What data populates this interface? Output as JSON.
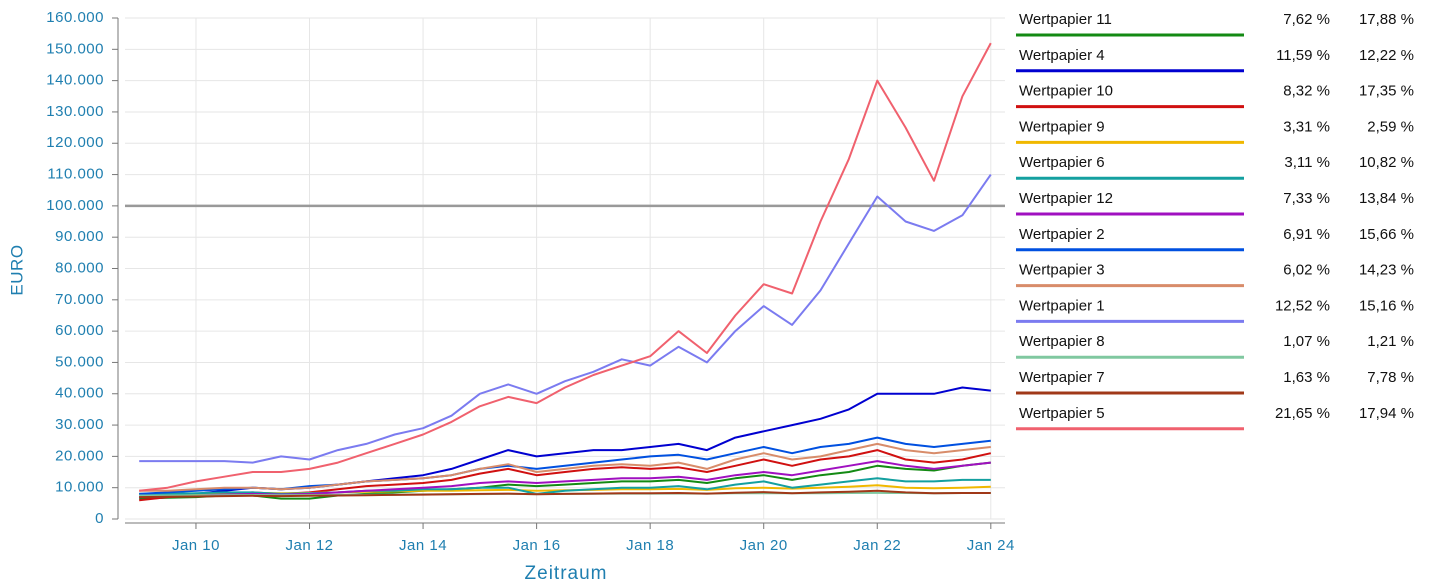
{
  "chart_data": {
    "type": "line",
    "ylabel": "EURO",
    "xlabel": "Zeitraum",
    "x": [
      "2009-01",
      "2009-07",
      "2010-01",
      "2010-07",
      "2011-01",
      "2011-07",
      "2012-01",
      "2012-07",
      "2013-01",
      "2013-07",
      "2014-01",
      "2014-07",
      "2015-01",
      "2015-07",
      "2016-01",
      "2016-07",
      "2017-01",
      "2017-07",
      "2018-01",
      "2018-07",
      "2019-01",
      "2019-07",
      "2020-01",
      "2020-07",
      "2021-01",
      "2021-07",
      "2022-01",
      "2022-07",
      "2023-01",
      "2023-07",
      "2024-01"
    ],
    "xlim": [
      "2008-10",
      "2024-04"
    ],
    "xticks": [
      {
        "value": "2010-01",
        "label": "Jan 10"
      },
      {
        "value": "2012-01",
        "label": "Jan 12"
      },
      {
        "value": "2014-01",
        "label": "Jan 14"
      },
      {
        "value": "2016-01",
        "label": "Jan 16"
      },
      {
        "value": "2018-01",
        "label": "Jan 18"
      },
      {
        "value": "2020-01",
        "label": "Jan 20"
      },
      {
        "value": "2022-01",
        "label": "Jan 22"
      },
      {
        "value": "2024-01",
        "label": "Jan 24"
      }
    ],
    "ylim": [
      0,
      160000
    ],
    "yticks": [
      0,
      {
        "value": 10000,
        "label": "10.000"
      },
      {
        "value": 20000,
        "label": "20.000"
      },
      {
        "value": 30000,
        "label": "30.000"
      },
      {
        "value": 40000,
        "label": "40.000"
      },
      {
        "value": 50000,
        "label": "50.000"
      },
      {
        "value": 60000,
        "label": "60.000"
      },
      {
        "value": 70000,
        "label": "70.000"
      },
      {
        "value": 80000,
        "label": "80.000"
      },
      {
        "value": 90000,
        "label": "90.000"
      },
      {
        "value": 100000,
        "label": "100.000"
      },
      {
        "value": 110000,
        "label": "110.000"
      },
      {
        "value": 120000,
        "label": "120.000"
      },
      {
        "value": 130000,
        "label": "130.000"
      },
      {
        "value": 140000,
        "label": "140.000"
      },
      {
        "value": 150000,
        "label": "150.000"
      },
      {
        "value": 160000,
        "label": "160.000"
      }
    ],
    "grid": true,
    "hline": {
      "value": 100000,
      "color": "#999999"
    },
    "series": [
      {
        "name": "Wertpapier 11",
        "color": "#138a13",
        "legend_values": [
          7.62,
          17.88
        ],
        "legend_labels": [
          "7,62 %",
          "17,88 %"
        ],
        "values": [
          6500,
          6800,
          7000,
          7500,
          7500,
          6500,
          6500,
          7500,
          8000,
          8500,
          9000,
          9500,
          10000,
          11000,
          10500,
          11000,
          11500,
          12000,
          12000,
          12500,
          11500,
          13000,
          14000,
          12500,
          14000,
          15000,
          17000,
          16000,
          15500,
          17000,
          18000
        ]
      },
      {
        "name": "Wertpapier 4",
        "color": "#0000d0",
        "legend_values": [
          11.59,
          12.22
        ],
        "legend_labels": [
          "11,59 %",
          "12,22 %"
        ],
        "values": [
          7000,
          7500,
          8000,
          9000,
          10000,
          9500,
          10000,
          11000,
          12000,
          13000,
          14000,
          16000,
          19000,
          22000,
          20000,
          21000,
          22000,
          22000,
          23000,
          24000,
          22000,
          26000,
          28000,
          30000,
          32000,
          35000,
          40000,
          40000,
          40000,
          42000,
          41000
        ]
      },
      {
        "name": "Wertpapier 10",
        "color": "#d01010",
        "legend_values": [
          8.32,
          17.35
        ],
        "legend_labels": [
          "8,32 %",
          "17,35 %"
        ],
        "values": [
          6000,
          7000,
          7500,
          8000,
          8500,
          8000,
          8500,
          9500,
          10500,
          11000,
          11500,
          12500,
          14500,
          16000,
          14000,
          15000,
          16000,
          16500,
          16000,
          16500,
          15000,
          17000,
          19000,
          17000,
          19000,
          20000,
          22000,
          19000,
          18000,
          19000,
          21000
        ]
      },
      {
        "name": "Wertpapier 9",
        "color": "#f0b800",
        "legend_values": [
          3.31,
          2.59
        ],
        "legend_labels": [
          "3,31 %",
          "2,59 %"
        ],
        "values": [
          8000,
          8000,
          8100,
          8200,
          8300,
          8200,
          8300,
          8500,
          8700,
          8800,
          9000,
          9000,
          9200,
          9300,
          9000,
          9200,
          9300,
          9500,
          9500,
          9600,
          9300,
          9800,
          10000,
          9700,
          10000,
          10300,
          10800,
          10000,
          9800,
          10000,
          10300
        ]
      },
      {
        "name": "Wertpapier 6",
        "color": "#14a0a0",
        "legend_values": [
          3.11,
          10.82
        ],
        "legend_labels": [
          "3,11 %",
          "10,82 %"
        ],
        "values": [
          8000,
          8000,
          8200,
          8500,
          8500,
          8000,
          8200,
          8500,
          9000,
          9000,
          9500,
          9500,
          10000,
          10000,
          8000,
          9000,
          9500,
          10000,
          10000,
          10500,
          9500,
          11000,
          12000,
          10000,
          11000,
          12000,
          13000,
          12000,
          12000,
          12500,
          12500
        ]
      },
      {
        "name": "Wertpapier 12",
        "color": "#a010c0",
        "legend_values": [
          7.33,
          13.84
        ],
        "legend_labels": [
          "7,33 %",
          "13,84 %"
        ],
        "values": [
          7000,
          7200,
          7500,
          7800,
          8000,
          7800,
          8000,
          8500,
          9000,
          9500,
          10000,
          10500,
          11500,
          12000,
          11500,
          12000,
          12500,
          13000,
          13000,
          13500,
          12500,
          14000,
          15000,
          14000,
          15500,
          17000,
          18500,
          17000,
          16000,
          17000,
          18000
        ]
      },
      {
        "name": "Wertpapier 2",
        "color": "#0050e0",
        "legend_values": [
          6.91,
          15.66
        ],
        "legend_labels": [
          "6,91 %",
          "15,66 %"
        ],
        "values": [
          8000,
          8500,
          9000,
          9500,
          10000,
          9500,
          10500,
          11000,
          12000,
          12500,
          13000,
          14000,
          16000,
          17000,
          16000,
          17000,
          18000,
          19000,
          20000,
          20500,
          19000,
          21000,
          23000,
          21000,
          23000,
          24000,
          26000,
          24000,
          23000,
          24000,
          25000
        ]
      },
      {
        "name": "Wertpapier 3",
        "color": "#d88c6a",
        "legend_values": [
          6.02,
          14.23
        ],
        "legend_labels": [
          "6,02 %",
          "14,23 %"
        ],
        "values": [
          9000,
          9000,
          9500,
          10000,
          10000,
          9500,
          10000,
          11000,
          12000,
          12500,
          13000,
          14000,
          16000,
          17500,
          15000,
          16000,
          17000,
          17500,
          17000,
          18000,
          16000,
          19000,
          21000,
          19000,
          20000,
          22000,
          24000,
          22000,
          21000,
          22000,
          23000
        ]
      },
      {
        "name": "Wertpapier 1",
        "color": "#7b7bf0",
        "legend_values": [
          12.52,
          15.16
        ],
        "legend_labels": [
          "12,52 %",
          "15,16 %"
        ],
        "values": [
          18500,
          18500,
          18500,
          18500,
          18000,
          20000,
          19000,
          22000,
          24000,
          27000,
          29000,
          33000,
          40000,
          43000,
          40000,
          44000,
          47000,
          51000,
          49000,
          55000,
          50000,
          60000,
          68000,
          62000,
          73000,
          88000,
          103000,
          95000,
          92000,
          97000,
          110000
        ]
      },
      {
        "name": "Wertpapier 8",
        "color": "#80c8a0",
        "legend_values": [
          1.07,
          1.21
        ],
        "legend_labels": [
          "1,07 %",
          "1,21 %"
        ],
        "values": [
          7500,
          7500,
          7550,
          7600,
          7650,
          7600,
          7650,
          7700,
          7750,
          7800,
          7850,
          7900,
          7950,
          8000,
          7950,
          8000,
          8050,
          8100,
          8100,
          8150,
          8100,
          8200,
          8250,
          8200,
          8250,
          8300,
          8350,
          8300,
          8250,
          8300,
          8300
        ]
      },
      {
        "name": "Wertpapier 7",
        "color": "#a03818",
        "legend_values": [
          1.63,
          7.78
        ],
        "legend_labels": [
          "1,63 %",
          "7,78 %"
        ],
        "values": [
          7000,
          7100,
          7200,
          7300,
          7400,
          7300,
          7400,
          7500,
          7600,
          7700,
          7800,
          7900,
          8000,
          8100,
          7900,
          8000,
          8100,
          8200,
          8200,
          8300,
          8100,
          8400,
          8600,
          8200,
          8500,
          8700,
          9000,
          8500,
          8200,
          8300,
          8300
        ]
      },
      {
        "name": "Wertpapier 5",
        "color": "#f0616e",
        "legend_values": [
          21.65,
          17.94
        ],
        "legend_labels": [
          "21,65 %",
          "17,94 %"
        ],
        "values": [
          9000,
          10000,
          12000,
          13500,
          15000,
          15000,
          16000,
          18000,
          21000,
          24000,
          27000,
          31000,
          36000,
          39000,
          37000,
          42000,
          46000,
          49000,
          52000,
          60000,
          53000,
          65000,
          75000,
          72000,
          95000,
          115000,
          140000,
          125000,
          108000,
          135000,
          152000
        ]
      }
    ]
  }
}
